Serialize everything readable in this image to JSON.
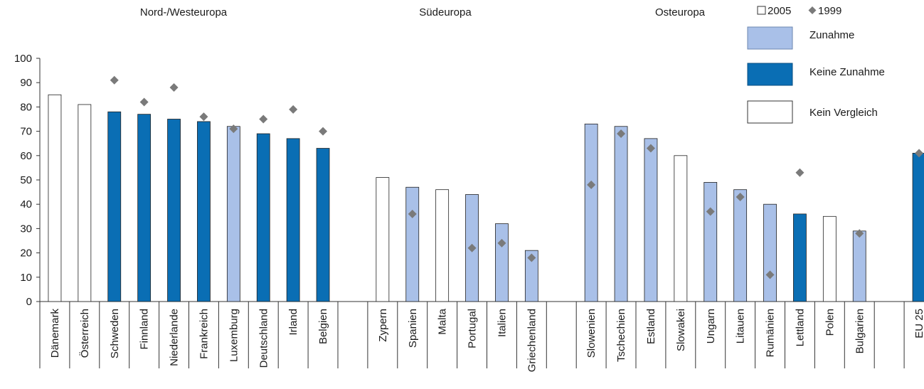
{
  "chart_data": {
    "type": "bar",
    "ylim": [
      0,
      100
    ],
    "yticks": [
      0,
      10,
      20,
      30,
      40,
      50,
      60,
      70,
      80,
      90,
      100
    ],
    "groups": [
      {
        "label": "Nord-/Westeuropa",
        "categories": [
          "Dänemark",
          "Österreich",
          "Schweden",
          "Finnland",
          "Niederlande",
          "Frankreich",
          "Luxemburg",
          "Deutschland",
          "Irland",
          "Belgien"
        ]
      },
      {
        "label": "Südeuropa",
        "categories": [
          "Zypern",
          "Spanien",
          "Malta",
          "Portugal",
          "Italien",
          "Griechenland"
        ]
      },
      {
        "label": "Osteuropa",
        "categories": [
          "Slowenien",
          "Tschechien",
          "Estland",
          "Slowakei",
          "Ungarn",
          "Litauen",
          "Rumänien",
          "Lettland",
          "Polen",
          "Bulgarien"
        ]
      },
      {
        "label": "",
        "categories": [
          "EU 25"
        ]
      }
    ],
    "series": [
      {
        "name": "2005",
        "values": [
          85,
          81,
          78,
          77,
          75,
          74,
          72,
          69,
          67,
          63,
          51,
          47,
          46,
          44,
          32,
          21,
          73,
          72,
          67,
          60,
          49,
          46,
          40,
          36,
          35,
          29,
          61
        ]
      },
      {
        "name": "1999",
        "values": [
          null,
          null,
          91,
          82,
          88,
          76,
          71,
          75,
          79,
          70,
          null,
          36,
          null,
          22,
          24,
          18,
          48,
          69,
          63,
          null,
          37,
          43,
          11,
          53,
          null,
          28,
          61
        ]
      }
    ],
    "categories_status": [
      "none",
      "none",
      "no_increase",
      "no_increase",
      "no_increase",
      "no_increase",
      "increase",
      "no_increase",
      "no_increase",
      "no_increase",
      "none",
      "increase",
      "none",
      "increase",
      "increase",
      "increase",
      "increase",
      "increase",
      "increase",
      "none",
      "increase",
      "increase",
      "increase",
      "no_increase",
      "none",
      "increase",
      "no_increase"
    ],
    "legend": {
      "series_2005": "2005",
      "series_1999": "1999",
      "increase": "Zunahme",
      "no_increase": "Keine Zunahme",
      "none": "Kein Vergleich"
    },
    "grid": false
  },
  "colors": {
    "increase": "#a9c0e8",
    "no_increase": "#0a6eb4",
    "none": "#ffffff",
    "marker": "#7a7a7a",
    "axis": "#333333"
  }
}
